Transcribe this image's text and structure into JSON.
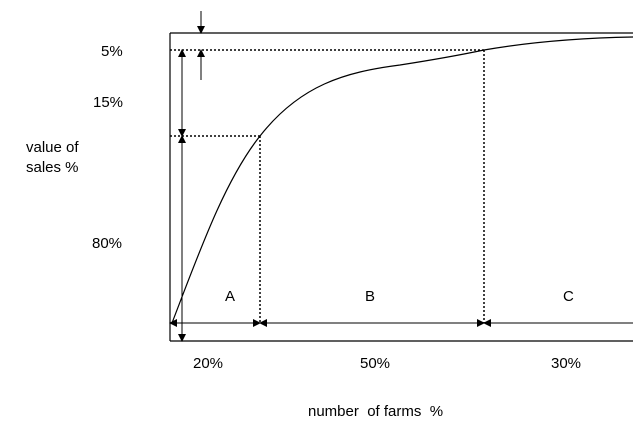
{
  "y_labels": {
    "top": "5%",
    "middle": "15%",
    "bottom": "80%"
  },
  "y_axis_label": {
    "line1": "value of",
    "line2": "sales %"
  },
  "regions": {
    "a": "A",
    "b": "B",
    "c": "C"
  },
  "x_labels": {
    "a": "20%",
    "b": "50%",
    "c": "30%"
  },
  "x_axis_label": "number  of farms  %"
}
